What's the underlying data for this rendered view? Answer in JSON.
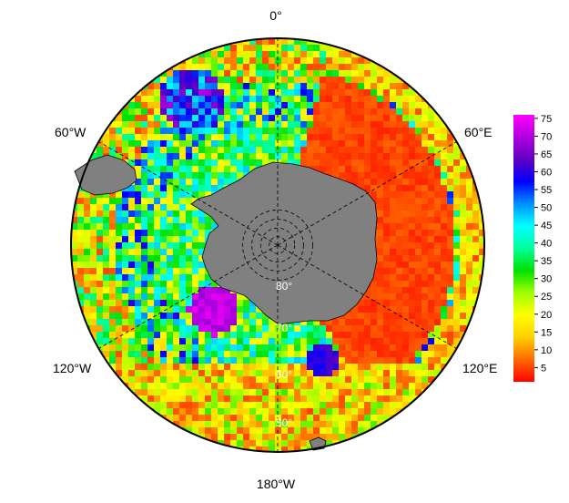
{
  "map": {
    "projection": "south-polar-stereographic",
    "longitude_labels": [
      {
        "id": "lon-0",
        "text": "0°"
      },
      {
        "id": "lon-60e",
        "text": "60°E"
      },
      {
        "id": "lon-120e",
        "text": "120°E"
      },
      {
        "id": "lon-180w",
        "text": "180°W"
      },
      {
        "id": "lon-120w",
        "text": "120°W"
      },
      {
        "id": "lon-60w",
        "text": "60°W"
      }
    ],
    "latitude_labels": [
      {
        "id": "lat-80",
        "text": "80°"
      },
      {
        "id": "lat-70",
        "text": "70°"
      },
      {
        "id": "lat-60",
        "text": "60°"
      },
      {
        "id": "lat-50",
        "text": "50°"
      }
    ],
    "graticule_latitudes": [
      80,
      70,
      60,
      50
    ],
    "outer_latitude": 40,
    "land_color": "#808080",
    "gridline_style": "dashed black",
    "colors": {
      "low": "#ff1a00",
      "high": "#ff00ff"
    }
  },
  "colorbar": {
    "min": 1,
    "max": 76,
    "ticks": [
      "75",
      "70",
      "65",
      "60",
      "55",
      "50",
      "45",
      "40",
      "35",
      "30",
      "25",
      "20",
      "15",
      "10",
      "5"
    ],
    "gradient": [
      "#ff0000",
      "#ff6a00",
      "#ffd000",
      "#ffff00",
      "#a0ff00",
      "#00e000",
      "#00ff99",
      "#00ffff",
      "#0090ff",
      "#0000ff",
      "#6000c0",
      "#b000e0",
      "#ff00ff"
    ]
  }
}
